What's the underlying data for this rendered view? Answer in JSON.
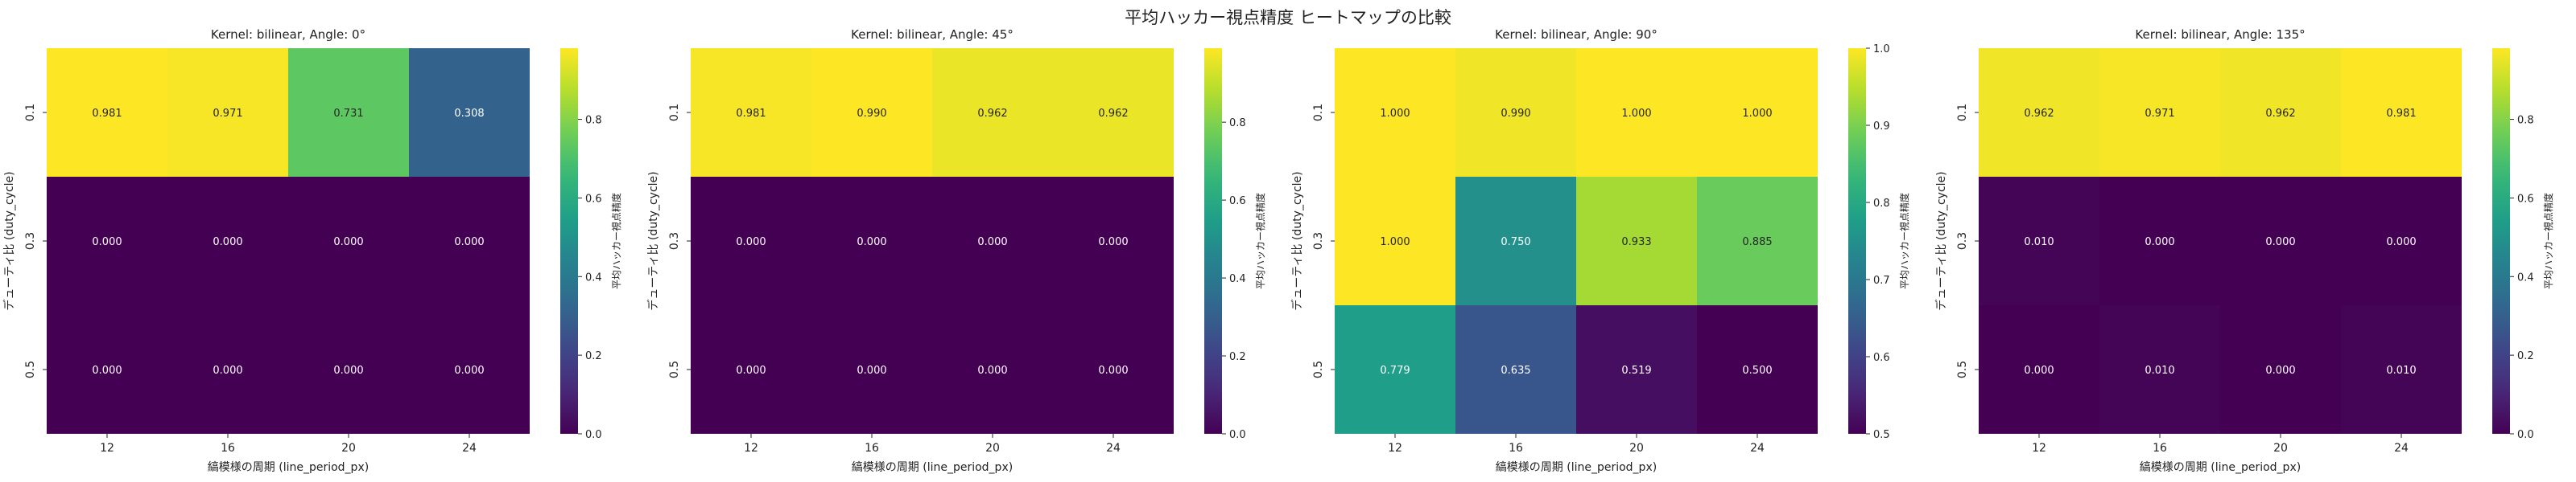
{
  "figure": {
    "suptitle": "平均ハッカー視点精度 ヒートマップの比較"
  },
  "chart_data": [
    {
      "type": "heatmap",
      "title": "Kernel: bilinear, Angle: 0°",
      "xlabel": "縞模様の周期 (line_period_px)",
      "ylabel": "デューティ比 (duty_cycle)",
      "x_categories": [
        "12",
        "16",
        "20",
        "24"
      ],
      "y_categories": [
        "0.1",
        "0.3",
        "0.5"
      ],
      "values": [
        [
          0.981,
          0.971,
          0.731,
          0.308
        ],
        [
          0.0,
          0.0,
          0.0,
          0.0
        ],
        [
          0.0,
          0.0,
          0.0,
          0.0
        ]
      ],
      "value_labels": [
        [
          "0.981",
          "0.971",
          "0.731",
          "0.308"
        ],
        [
          "0.000",
          "0.000",
          "0.000",
          "0.000"
        ],
        [
          "0.000",
          "0.000",
          "0.000",
          "0.000"
        ]
      ],
      "colormap": "viridis",
      "vmin": 0.0,
      "vmax": 0.981,
      "colorbar_ticks": [
        "0.0",
        "0.2",
        "0.4",
        "0.6",
        "0.8"
      ],
      "colorbar_tick_values": [
        0.0,
        0.2,
        0.4,
        0.6,
        0.8
      ],
      "colorbar_label": "平均ハッカー視点精度"
    },
    {
      "type": "heatmap",
      "title": "Kernel: bilinear, Angle: 45°",
      "xlabel": "縞模様の周期 (line_period_px)",
      "ylabel": "デューティ比 (duty_cycle)",
      "x_categories": [
        "12",
        "16",
        "20",
        "24"
      ],
      "y_categories": [
        "0.1",
        "0.3",
        "0.5"
      ],
      "values": [
        [
          0.981,
          0.99,
          0.962,
          0.962
        ],
        [
          0.0,
          0.0,
          0.0,
          0.0
        ],
        [
          0.0,
          0.0,
          0.0,
          0.0
        ]
      ],
      "value_labels": [
        [
          "0.981",
          "0.990",
          "0.962",
          "0.962"
        ],
        [
          "0.000",
          "0.000",
          "0.000",
          "0.000"
        ],
        [
          "0.000",
          "0.000",
          "0.000",
          "0.000"
        ]
      ],
      "colormap": "viridis",
      "vmin": 0.0,
      "vmax": 0.99,
      "colorbar_ticks": [
        "0.0",
        "0.2",
        "0.4",
        "0.6",
        "0.8"
      ],
      "colorbar_tick_values": [
        0.0,
        0.2,
        0.4,
        0.6,
        0.8
      ],
      "colorbar_label": "平均ハッカー視点精度"
    },
    {
      "type": "heatmap",
      "title": "Kernel: bilinear, Angle: 90°",
      "xlabel": "縞模様の周期 (line_period_px)",
      "ylabel": "デューティ比 (duty_cycle)",
      "x_categories": [
        "12",
        "16",
        "20",
        "24"
      ],
      "y_categories": [
        "0.1",
        "0.3",
        "0.5"
      ],
      "values": [
        [
          1.0,
          0.99,
          1.0,
          1.0
        ],
        [
          1.0,
          0.75,
          0.933,
          0.885
        ],
        [
          0.779,
          0.635,
          0.519,
          0.5
        ]
      ],
      "value_labels": [
        [
          "1.000",
          "0.990",
          "1.000",
          "1.000"
        ],
        [
          "1.000",
          "0.750",
          "0.933",
          "0.885"
        ],
        [
          "0.779",
          "0.635",
          "0.519",
          "0.500"
        ]
      ],
      "colormap": "viridis",
      "vmin": 0.5,
      "vmax": 1.0,
      "colorbar_ticks": [
        "0.5",
        "0.6",
        "0.7",
        "0.8",
        "0.9",
        "1.0"
      ],
      "colorbar_tick_values": [
        0.5,
        0.6,
        0.7,
        0.8,
        0.9,
        1.0
      ],
      "colorbar_label": "平均ハッカー視点精度"
    },
    {
      "type": "heatmap",
      "title": "Kernel: bilinear, Angle: 135°",
      "xlabel": "縞模様の周期 (line_period_px)",
      "ylabel": "デューティ比 (duty_cycle)",
      "x_categories": [
        "12",
        "16",
        "20",
        "24"
      ],
      "y_categories": [
        "0.1",
        "0.3",
        "0.5"
      ],
      "values": [
        [
          0.962,
          0.971,
          0.962,
          0.981
        ],
        [
          0.01,
          0.0,
          0.0,
          0.0
        ],
        [
          0.0,
          0.01,
          0.0,
          0.01
        ]
      ],
      "value_labels": [
        [
          "0.962",
          "0.971",
          "0.962",
          "0.981"
        ],
        [
          "0.010",
          "0.000",
          "0.000",
          "0.000"
        ],
        [
          "0.000",
          "0.010",
          "0.000",
          "0.010"
        ]
      ],
      "colormap": "viridis",
      "vmin": 0.0,
      "vmax": 0.981,
      "colorbar_ticks": [
        "0.0",
        "0.2",
        "0.4",
        "0.6",
        "0.8"
      ],
      "colorbar_tick_values": [
        0.0,
        0.2,
        0.4,
        0.6,
        0.8
      ],
      "colorbar_label": "平均ハッカー視点精度"
    }
  ]
}
